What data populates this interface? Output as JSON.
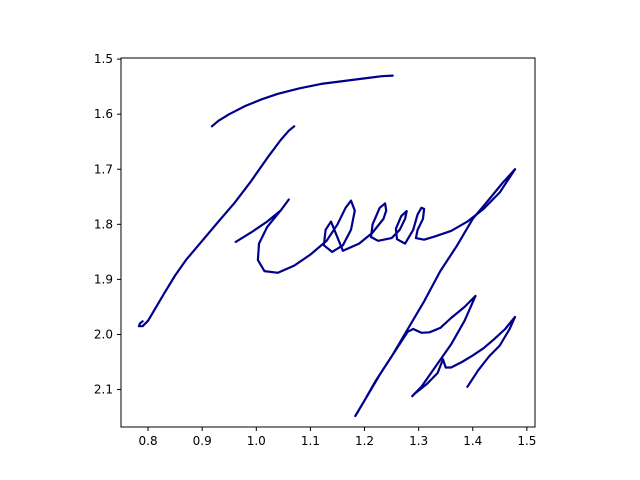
{
  "chart_data": {
    "type": "line",
    "title": "",
    "xlabel": "",
    "ylabel": "",
    "xlim": [
      0.75,
      1.515
    ],
    "ylim": [
      2.168,
      1.498
    ],
    "y_inverted": true,
    "grid": false,
    "legend": "none",
    "line_color": "#00008b",
    "x_ticks": [
      0.8,
      0.9,
      1.0,
      1.1,
      1.2,
      1.3,
      1.4,
      1.5
    ],
    "y_ticks": [
      1.5,
      1.6,
      1.7,
      1.8,
      1.9,
      2.0,
      2.1
    ],
    "series": [
      {
        "name": "",
        "points": [
          [
            0.918,
            1.622
          ],
          [
            0.93,
            1.612
          ],
          [
            0.95,
            1.6
          ],
          [
            0.98,
            1.585
          ],
          [
            1.01,
            1.573
          ],
          [
            1.04,
            1.563
          ],
          [
            1.08,
            1.553
          ],
          [
            1.12,
            1.545
          ],
          [
            1.16,
            1.54
          ],
          [
            1.2,
            1.535
          ],
          [
            1.232,
            1.531
          ],
          [
            1.252,
            1.53
          ]
        ]
      },
      {
        "name": "",
        "points": [
          [
            1.07,
            1.622
          ],
          [
            1.06,
            1.63
          ],
          [
            1.045,
            1.647
          ],
          [
            1.02,
            1.68
          ],
          [
            0.99,
            1.722
          ],
          [
            0.96,
            1.761
          ],
          [
            0.93,
            1.795
          ],
          [
            0.9,
            1.83
          ],
          [
            0.87,
            1.865
          ],
          [
            0.85,
            1.893
          ],
          [
            0.83,
            1.925
          ],
          [
            0.815,
            1.95
          ],
          [
            0.8,
            1.975
          ],
          [
            0.79,
            1.985
          ],
          [
            0.783,
            1.985
          ],
          [
            0.785,
            1.98
          ],
          [
            0.79,
            1.976
          ]
        ]
      },
      {
        "name": "",
        "points": [
          [
            0.962,
            1.832
          ],
          [
            0.99,
            1.815
          ],
          [
            1.02,
            1.795
          ],
          [
            1.045,
            1.775
          ],
          [
            1.06,
            1.755
          ],
          [
            1.045,
            1.775
          ],
          [
            1.02,
            1.805
          ],
          [
            1.005,
            1.835
          ],
          [
            1.003,
            1.865
          ],
          [
            1.015,
            1.885
          ],
          [
            1.04,
            1.888
          ],
          [
            1.07,
            1.875
          ],
          [
            1.1,
            1.855
          ],
          [
            1.13,
            1.83
          ],
          [
            1.15,
            1.8
          ],
          [
            1.165,
            1.77
          ],
          [
            1.175,
            1.757
          ],
          [
            1.182,
            1.775
          ],
          [
            1.175,
            1.81
          ],
          [
            1.16,
            1.838
          ],
          [
            1.14,
            1.85
          ],
          [
            1.125,
            1.838
          ],
          [
            1.128,
            1.81
          ],
          [
            1.138,
            1.795
          ],
          [
            1.16,
            1.848
          ],
          [
            1.19,
            1.835
          ],
          [
            1.215,
            1.815
          ],
          [
            1.235,
            1.79
          ],
          [
            1.24,
            1.775
          ],
          [
            1.238,
            1.762
          ],
          [
            1.228,
            1.77
          ],
          [
            1.215,
            1.8
          ],
          [
            1.212,
            1.823
          ],
          [
            1.225,
            1.83
          ],
          [
            1.25,
            1.825
          ],
          [
            1.265,
            1.81
          ],
          [
            1.275,
            1.79
          ],
          [
            1.278,
            1.776
          ],
          [
            1.268,
            1.785
          ],
          [
            1.258,
            1.808
          ],
          [
            1.26,
            1.827
          ],
          [
            1.275,
            1.835
          ],
          [
            1.29,
            1.81
          ],
          [
            1.298,
            1.782
          ],
          [
            1.305,
            1.77
          ],
          [
            1.31,
            1.772
          ],
          [
            1.308,
            1.79
          ],
          [
            1.298,
            1.81
          ],
          [
            1.295,
            1.825
          ],
          [
            1.31,
            1.828
          ],
          [
            1.33,
            1.822
          ],
          [
            1.36,
            1.812
          ],
          [
            1.39,
            1.795
          ],
          [
            1.42,
            1.772
          ],
          [
            1.45,
            1.742
          ],
          [
            1.478,
            1.7
          ]
        ]
      },
      {
        "name": "",
        "points": [
          [
            1.478,
            1.7
          ],
          [
            1.455,
            1.725
          ],
          [
            1.43,
            1.755
          ],
          [
            1.4,
            1.79
          ],
          [
            1.37,
            1.84
          ],
          [
            1.34,
            1.885
          ],
          [
            1.31,
            1.94
          ],
          [
            1.28,
            1.99
          ],
          [
            1.25,
            2.04
          ],
          [
            1.22,
            2.085
          ],
          [
            1.2,
            2.12
          ],
          [
            1.183,
            2.148
          ],
          [
            1.2,
            2.12
          ],
          [
            1.23,
            2.07
          ],
          [
            1.26,
            2.025
          ],
          [
            1.28,
            1.995
          ],
          [
            1.29,
            1.99
          ],
          [
            1.305,
            1.997
          ],
          [
            1.32,
            1.996
          ],
          [
            1.34,
            1.988
          ],
          [
            1.36,
            1.97
          ],
          [
            1.385,
            1.95
          ],
          [
            1.405,
            1.93
          ],
          [
            1.385,
            1.975
          ],
          [
            1.36,
            2.018
          ],
          [
            1.33,
            2.06
          ],
          [
            1.305,
            2.095
          ],
          [
            1.288,
            2.112
          ],
          [
            1.292,
            2.108
          ],
          [
            1.315,
            2.09
          ],
          [
            1.335,
            2.07
          ],
          [
            1.345,
            2.045
          ],
          [
            1.35,
            2.06
          ],
          [
            1.36,
            2.06
          ],
          [
            1.38,
            2.05
          ],
          [
            1.4,
            2.038
          ],
          [
            1.42,
            2.025
          ],
          [
            1.44,
            2.008
          ],
          [
            1.46,
            1.99
          ],
          [
            1.478,
            1.968
          ],
          [
            1.468,
            1.99
          ],
          [
            1.45,
            2.02
          ],
          [
            1.43,
            2.04
          ],
          [
            1.41,
            2.065
          ],
          [
            1.39,
            2.095
          ]
        ]
      }
    ]
  }
}
